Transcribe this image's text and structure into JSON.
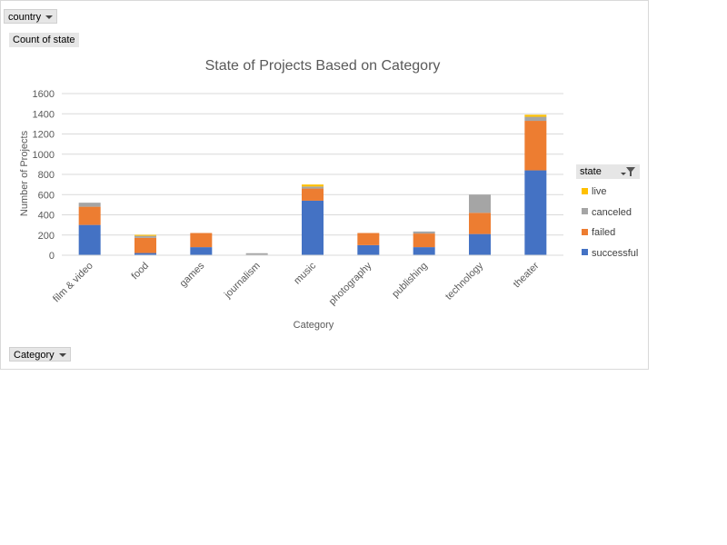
{
  "filters": {
    "country_label": "country",
    "count_label": "Count of state",
    "category_label": "Category"
  },
  "legend": {
    "header": "state",
    "items": [
      {
        "label": "live",
        "color": "#ffc000"
      },
      {
        "label": "canceled",
        "color": "#a5a5a5"
      },
      {
        "label": "failed",
        "color": "#ed7d31"
      },
      {
        "label": "successful",
        "color": "#4472c4"
      }
    ]
  },
  "chart_data": {
    "type": "bar",
    "stacked": true,
    "title": "State of Projects Based on Category",
    "xlabel": "Category",
    "ylabel": "Number  of Projects",
    "ylim": [
      0,
      1600
    ],
    "yticks": [
      0,
      200,
      400,
      600,
      800,
      1000,
      1200,
      1400,
      1600
    ],
    "grid": true,
    "legend_position": "right",
    "categories": [
      "film & video",
      "food",
      "games",
      "journalism",
      "music",
      "photography",
      "publishing",
      "technology",
      "theater"
    ],
    "series": [
      {
        "name": "successful",
        "color": "#4472c4",
        "values": [
          300,
          22,
          80,
          0,
          540,
          100,
          80,
          210,
          840
        ]
      },
      {
        "name": "failed",
        "color": "#ed7d31",
        "values": [
          180,
          150,
          140,
          0,
          120,
          120,
          135,
          210,
          490
        ]
      },
      {
        "name": "canceled",
        "color": "#a5a5a5",
        "values": [
          40,
          20,
          0,
          20,
          20,
          0,
          20,
          180,
          40
        ]
      },
      {
        "name": "live",
        "color": "#ffc000",
        "values": [
          0,
          10,
          0,
          0,
          20,
          0,
          0,
          0,
          20
        ]
      }
    ]
  }
}
